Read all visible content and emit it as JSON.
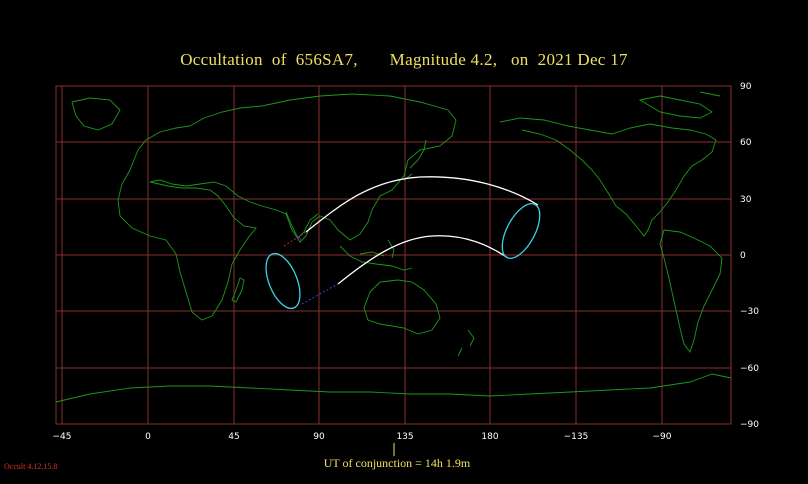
{
  "title": {
    "text": "Occultation  of  656SA7,       Magnitude 4.2,   on  2021 Dec 17"
  },
  "axes": {
    "x_ticks": [
      "−45",
      "0",
      "45",
      "90",
      "135",
      "180",
      "−135",
      "−90"
    ],
    "y_ticks": [
      "90",
      "60",
      "30",
      "0",
      "−30",
      "−60",
      "−90"
    ]
  },
  "footer": {
    "ut_conjunction": "UT of conjunction = 14h  1.9m",
    "version": "Occult 4.12.15.8"
  },
  "colors": {
    "background": "#000000",
    "grid": "#8a3030",
    "coastline": "#1c9a1c",
    "path": "#ffffff",
    "limit_ellipse": "#40d0e0",
    "title": "#f0e060",
    "version": "#e03020"
  }
}
